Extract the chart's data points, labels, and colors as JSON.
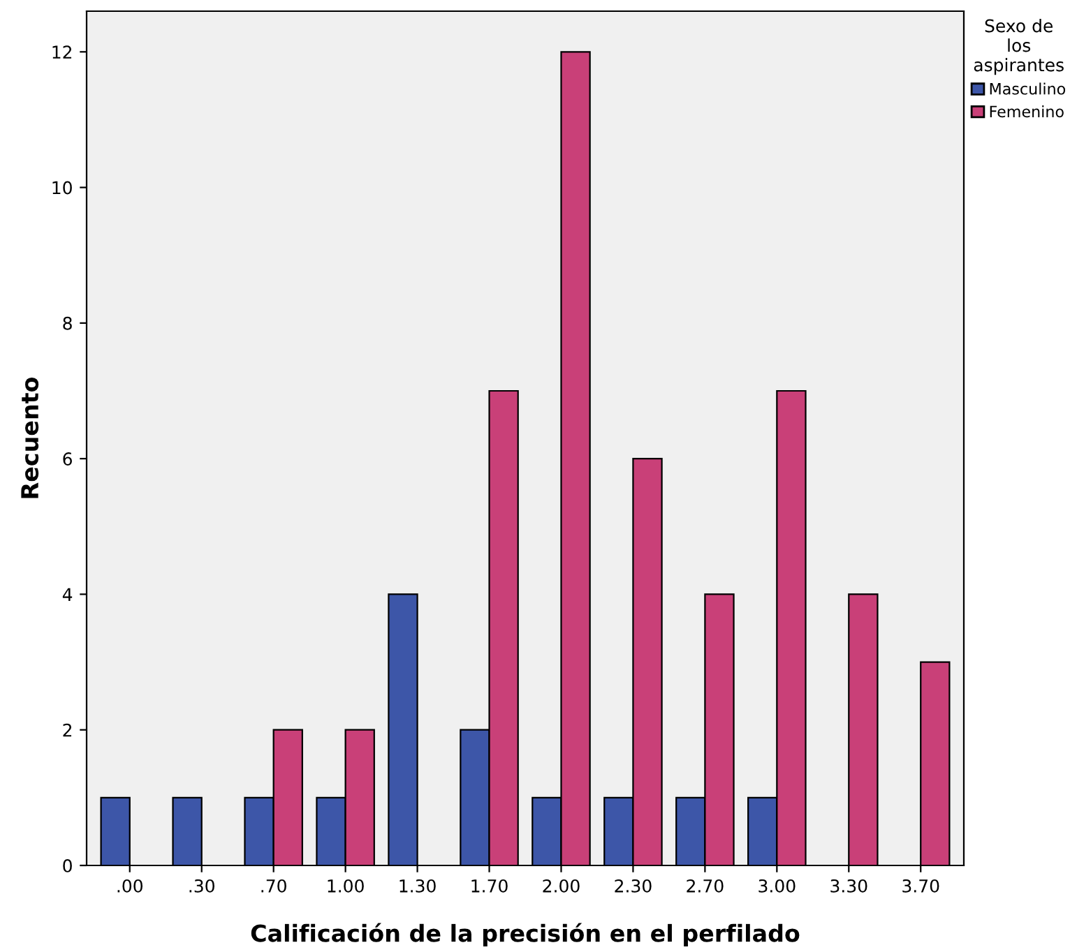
{
  "chart_data": {
    "type": "bar",
    "xlabel": "Calificación de la precisión en el perfilado",
    "ylabel": "Recuento",
    "legend_title": "Sexo de\nlos\naspirantes",
    "categories": [
      ".00",
      ".30",
      ".70",
      "1.00",
      "1.30",
      "1.70",
      "2.00",
      "2.30",
      "2.70",
      "3.00",
      "3.30",
      "3.70"
    ],
    "series": [
      {
        "name": "Masculino",
        "color": "#3d56a8",
        "values": [
          1,
          1,
          1,
          1,
          4,
          2,
          1,
          1,
          1,
          1,
          0,
          0
        ]
      },
      {
        "name": "Femenino",
        "color": "#c94078",
        "values": [
          0,
          0,
          2,
          2,
          0,
          7,
          12,
          6,
          4,
          7,
          4,
          3
        ]
      }
    ],
    "ylim": [
      0,
      12.6
    ],
    "yticks": [
      0,
      2,
      4,
      6,
      8,
      10,
      12
    ],
    "grid": false,
    "legend": "top right"
  }
}
